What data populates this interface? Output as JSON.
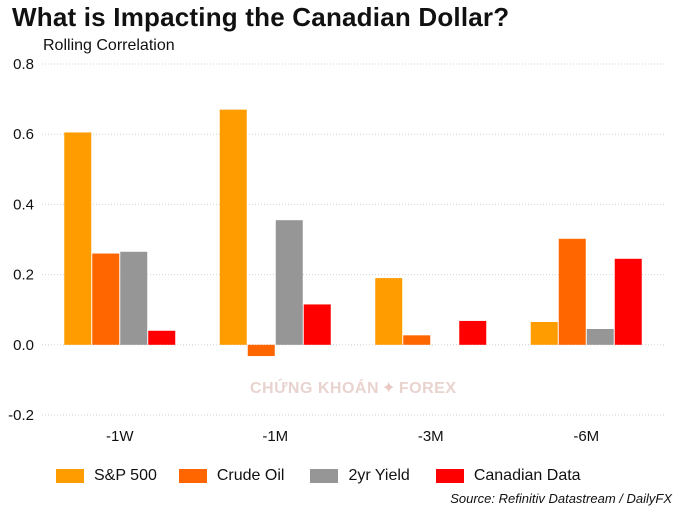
{
  "title": "What is Impacting the Canadian Dollar?",
  "subtitle": "Rolling Correlation",
  "source": "Source: Refinitiv Datastream / DailyFX",
  "watermark": {
    "left": "CHỨNG KHOÁN",
    "right": "FOREX"
  },
  "chart_data": {
    "type": "bar",
    "title": "What is Impacting the Canadian Dollar?",
    "subtitle": "Rolling Correlation",
    "xlabel": "",
    "ylabel": "",
    "categories": [
      "-1W",
      "-1M",
      "-3M",
      "-6M"
    ],
    "ylim": [
      -0.2,
      0.8
    ],
    "yticks": [
      -0.2,
      0.0,
      0.2,
      0.4,
      0.6,
      0.8
    ],
    "ytick_labels": [
      "-0.2",
      "0.0",
      "0.2",
      "0.4",
      "0.6",
      "0.8"
    ],
    "grid": true,
    "legend_position": "bottom",
    "series": [
      {
        "name": "S&P 500",
        "color": "#FF9C00",
        "values": [
          0.605,
          0.67,
          0.19,
          0.065
        ]
      },
      {
        "name": "Crude Oil",
        "color": "#FF6600",
        "values": [
          0.26,
          -0.032,
          0.027,
          0.302
        ]
      },
      {
        "name": "2yr Yield",
        "color": "#969696",
        "values": [
          0.265,
          0.355,
          0.0,
          0.045
        ]
      },
      {
        "name": "Canadian Data",
        "color": "#FF0000",
        "values": [
          0.04,
          0.115,
          0.068,
          0.245
        ]
      }
    ]
  }
}
